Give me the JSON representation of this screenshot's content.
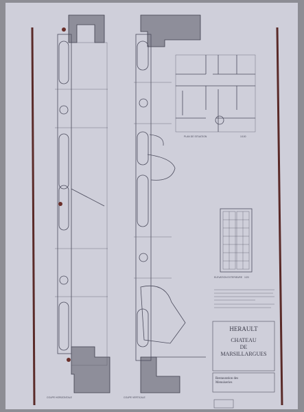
{
  "sections": {
    "horizontal": "COUPE HORIZONTALE",
    "vertical": "COUPE VERTICALE"
  },
  "plan": {
    "label": "PLAN DE SITUATION",
    "scale": "1/100"
  },
  "elevation": {
    "label": "ELEVATION EXTERIEURE",
    "scale": "1/20"
  },
  "title_block": {
    "department": "HERAULT",
    "building": [
      "CHATEAU",
      "DE",
      "MARSILLARGUES"
    ],
    "subject": [
      "Restauration des",
      "Menuiseries"
    ]
  }
}
